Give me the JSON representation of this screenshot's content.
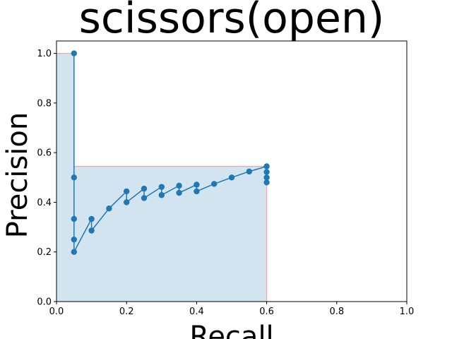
{
  "chart_data": {
    "type": "line",
    "title": "scissors(open)",
    "xlabel": "Recall",
    "ylabel": "Precision",
    "xlim": [
      0,
      1
    ],
    "ylim": [
      0,
      1.05
    ],
    "xticks": [
      "0.0",
      "0.2",
      "0.4",
      "0.6",
      "0.8",
      "1.0"
    ],
    "yticks": [
      "0.0",
      "0.2",
      "0.4",
      "0.6",
      "0.8",
      "1.0"
    ],
    "grid": false,
    "colors": {
      "line": "#1f77b4",
      "fill": "#1f77b4",
      "envelope": "#f4a6a6"
    },
    "series": [
      {
        "x": [
          0.05,
          0.05,
          0.05,
          0.05,
          0.05,
          0.1,
          0.1,
          0.15,
          0.2,
          0.2,
          0.25,
          0.25,
          0.3,
          0.3,
          0.35,
          0.35,
          0.4,
          0.4,
          0.45,
          0.5,
          0.55,
          0.6,
          0.6,
          0.6,
          0.6
        ],
        "y": [
          1.0,
          0.5,
          0.333,
          0.25,
          0.2,
          0.333,
          0.286,
          0.375,
          0.444,
          0.4,
          0.455,
          0.417,
          0.462,
          0.429,
          0.467,
          0.438,
          0.471,
          0.444,
          0.474,
          0.5,
          0.524,
          0.545,
          0.522,
          0.5,
          0.48
        ]
      }
    ],
    "envelope": {
      "x": [
        0,
        0.05,
        0.05,
        0.6,
        0.6
      ],
      "y": [
        1.0,
        1.0,
        0.545,
        0.545,
        0.0
      ]
    }
  }
}
